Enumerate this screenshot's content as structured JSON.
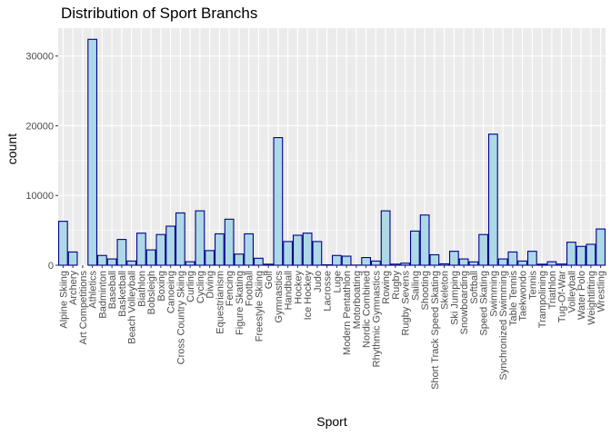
{
  "chart_data": {
    "type": "bar",
    "title": "Distribution of Sport Branchs",
    "xlabel": "Sport",
    "ylabel": "count",
    "ylim": [
      0,
      34000
    ],
    "yticks": [
      0,
      10000,
      20000,
      30000
    ],
    "ytick_labels": [
      "0",
      "10000",
      "20000",
      "30000"
    ],
    "bar_fill": "#add8e6",
    "bar_stroke": "#00008b",
    "panel_bg": "#ebebeb",
    "grid": true,
    "legend": "none",
    "categories": [
      "Alpine Skiing",
      "Archery",
      "Art Competitions",
      "Athletics",
      "Badminton",
      "Baseball",
      "Basketball",
      "Beach Volleyball",
      "Biathlon",
      "Bobsleigh",
      "Boxing",
      "Canoeing",
      "Cross Country Skiing",
      "Curling",
      "Cycling",
      "Diving",
      "Equestrianism",
      "Fencing",
      "Figure Skating",
      "Football",
      "Freestyle Skiing",
      "Golf",
      "Gymnastics",
      "Handball",
      "Hockey",
      "Ice Hockey",
      "Judo",
      "Lacrosse",
      "Luge",
      "Modern Pentathlon",
      "Motorboating",
      "Nordic Combined",
      "Rhythmic Gymnastics",
      "Rowing",
      "Rugby",
      "Rugby Sevens",
      "Sailing",
      "Shooting",
      "Short Track Speed Skating",
      "Skeleton",
      "Ski Jumping",
      "Snowboarding",
      "Softball",
      "Speed Skating",
      "Swimming",
      "Synchronized Swimming",
      "Table Tennis",
      "Taekwondo",
      "Tennis",
      "Trampolining",
      "Triathlon",
      "Tug-Of-War",
      "Volleyball",
      "Water Polo",
      "Weightlifting",
      "Wrestling"
    ],
    "values": [
      6300,
      1900,
      0,
      32400,
      1400,
      900,
      3700,
      600,
      4600,
      2200,
      4400,
      5600,
      7500,
      500,
      7800,
      2100,
      4500,
      6600,
      1600,
      4500,
      1000,
      150,
      18300,
      3400,
      4300,
      4600,
      3400,
      60,
      1400,
      1300,
      20,
      1100,
      600,
      7800,
      160,
      300,
      4900,
      7200,
      1500,
      200,
      2000,
      900,
      480,
      4400,
      18800,
      900,
      1900,
      600,
      2000,
      150,
      500,
      170,
      3300,
      2700,
      3000,
      5200
    ]
  }
}
